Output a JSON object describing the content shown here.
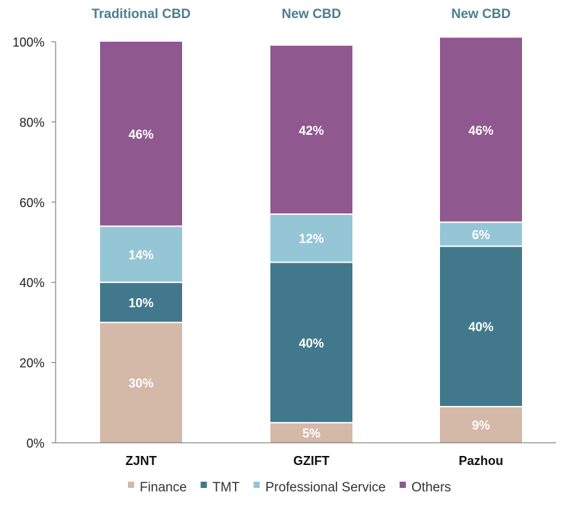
{
  "chart_data": {
    "type": "bar",
    "stacked": true,
    "categories": [
      "ZJNT",
      "GZIFT",
      "Pazhou"
    ],
    "group_titles": [
      "Traditional CBD",
      "New CBD",
      "New CBD"
    ],
    "series": [
      {
        "name": "Finance",
        "color": "#D4B8A8",
        "values": [
          30,
          5,
          9
        ],
        "labels": [
          "30%",
          "5%",
          "9%"
        ]
      },
      {
        "name": "TMT",
        "color": "#41788C",
        "values": [
          10,
          40,
          40
        ],
        "labels": [
          "10%",
          "40%",
          "40%"
        ]
      },
      {
        "name": "Professional Service",
        "color": "#95C6D6",
        "values": [
          14,
          12,
          6
        ],
        "labels": [
          "14%",
          "12%",
          "6%"
        ]
      },
      {
        "name": "Others",
        "color": "#8F588F",
        "values": [
          46,
          42,
          46
        ],
        "labels": [
          "46%",
          "42%",
          "46%"
        ]
      }
    ],
    "ylim": [
      0,
      100
    ],
    "yticks": [
      0,
      20,
      40,
      60,
      80,
      100
    ],
    "ytick_labels": [
      "0%",
      "20%",
      "40%",
      "60%",
      "80%",
      "100%"
    ],
    "xlabel": "",
    "ylabel": "",
    "legend_position": "bottom",
    "title_color": "#4A8090",
    "axis_color": "#666666"
  }
}
